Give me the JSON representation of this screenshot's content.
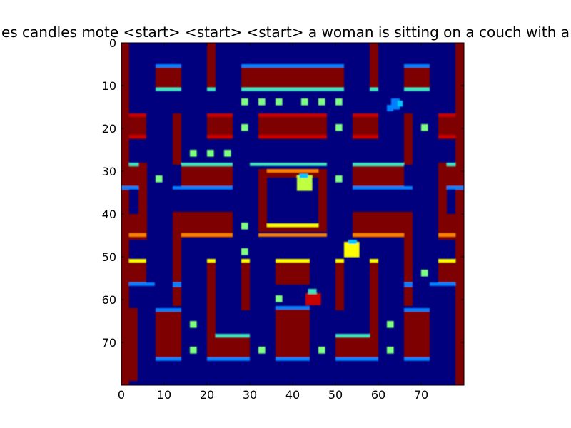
{
  "figure": {
    "title": "es candles mote <start> <start> <start> a woman is sitting on a couch with a"
  },
  "axes": {
    "x_ticks": [
      "0",
      "10",
      "20",
      "30",
      "40",
      "50",
      "60",
      "70"
    ],
    "y_ticks": [
      "0",
      "10",
      "20",
      "30",
      "40",
      "50",
      "60",
      "70"
    ]
  },
  "colormap": {
    "name": "jet",
    "background": "#00007f",
    "wall": "#7f0000"
  },
  "game_frame": {
    "grid_size": 80,
    "description_of_content": "pixel-level maze frame rendered with jet colormap"
  }
}
